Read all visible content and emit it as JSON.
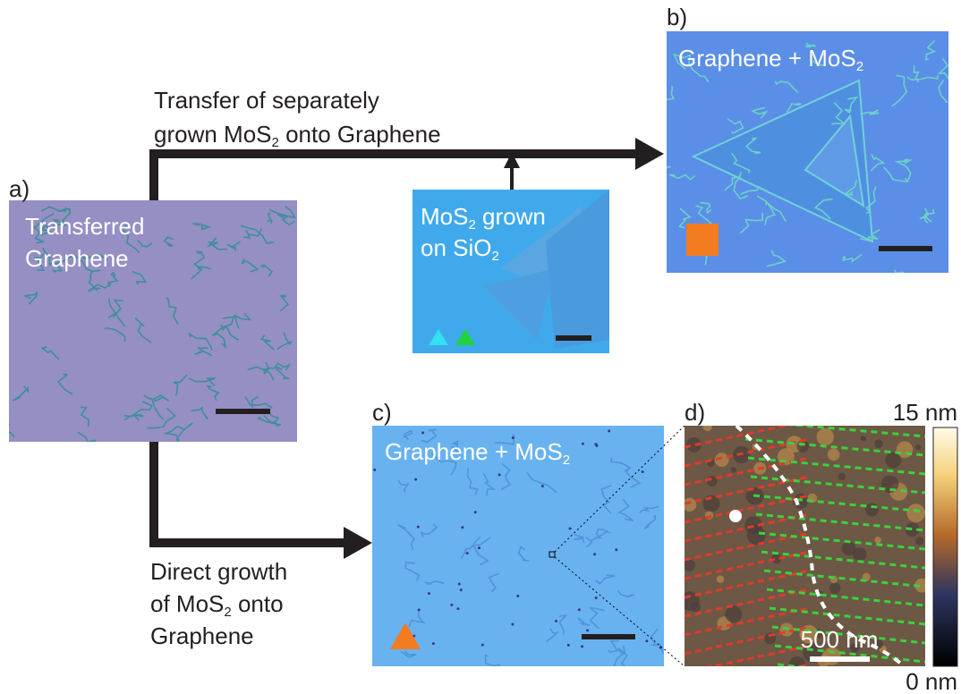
{
  "transfer_route": {
    "lines": [
      [
        {
          "text": "Transfer of separately"
        }
      ],
      [
        {
          "text": "grown MoS"
        },
        {
          "sub": "2"
        },
        {
          "text": " onto Graphene"
        }
      ]
    ]
  },
  "direct_route": {
    "lines": [
      [
        {
          "text": "Direct growth"
        }
      ],
      [
        {
          "text": "of MoS"
        },
        {
          "sub": "2"
        },
        {
          "text": " onto"
        }
      ],
      [
        {
          "text": "Graphene"
        }
      ]
    ]
  },
  "panel_a": {
    "label": "a)",
    "lines": [
      [
        {
          "text": "Transferred"
        }
      ],
      [
        {
          "text": "Graphene"
        }
      ]
    ]
  },
  "panel_mos2": {
    "lines": [
      [
        {
          "text": "MoS"
        },
        {
          "sub": "2"
        },
        {
          "text": " grown"
        }
      ],
      [
        {
          "text": "on SiO"
        },
        {
          "sub": "2"
        }
      ]
    ]
  },
  "panel_b": {
    "label": "b)",
    "lines": [
      [
        {
          "text": "Graphene + MoS"
        },
        {
          "sub": "2"
        }
      ]
    ]
  },
  "panel_c": {
    "label": "c)",
    "lines": [
      [
        {
          "text": "Graphene + MoS"
        },
        {
          "sub": "2"
        }
      ]
    ]
  },
  "panel_d": {
    "label": "d)",
    "scale_bar": "500 nm",
    "colorbar_max": "15 nm",
    "colorbar_min": "0 nm"
  }
}
